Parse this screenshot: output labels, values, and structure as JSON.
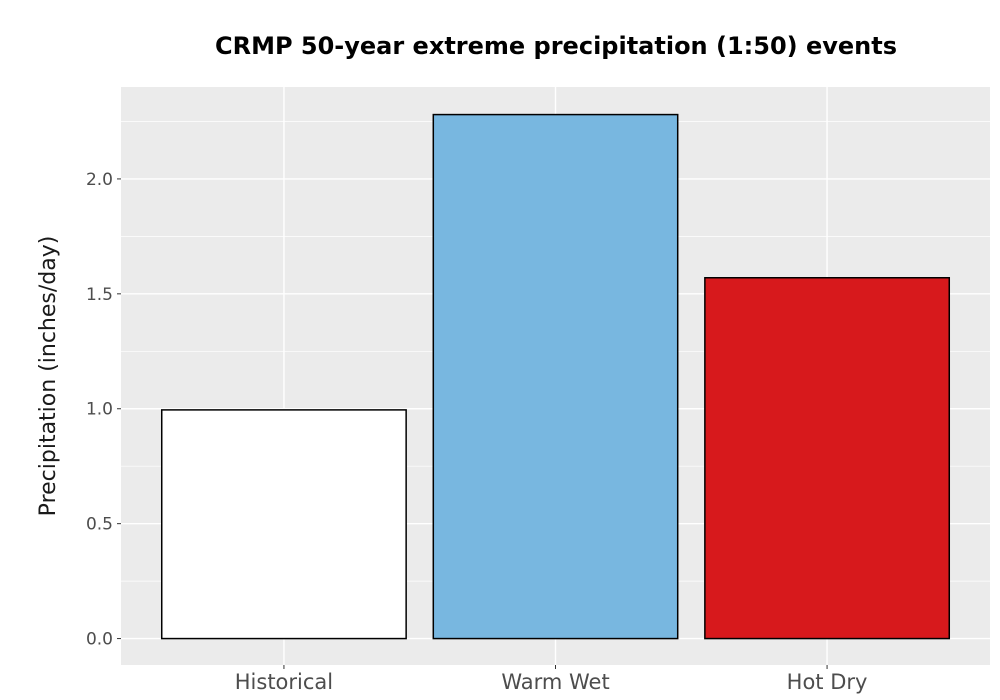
{
  "chart_data": {
    "type": "bar",
    "title": "CRMP 50-year extreme precipitation (1:50) events",
    "xlabel": "",
    "ylabel": "Precipitation (inches/day)",
    "categories": [
      "Historical",
      "Warm Wet",
      "Hot Dry"
    ],
    "values": [
      0.995,
      2.28,
      1.57
    ],
    "bar_colors": [
      "#ffffff",
      "#78b7e0",
      "#d7191c"
    ],
    "bar_outline": "#000000",
    "ylim": [
      -0.115,
      2.4
    ],
    "y_ticks": [
      0.0,
      0.5,
      1.0,
      1.5,
      2.0
    ],
    "y_tick_labels": [
      "0.0",
      "0.5",
      "1.0",
      "1.5",
      "2.0"
    ],
    "grid": true,
    "panel_background": "#ebebeb",
    "grid_color": "#ffffff",
    "legend": "none"
  }
}
